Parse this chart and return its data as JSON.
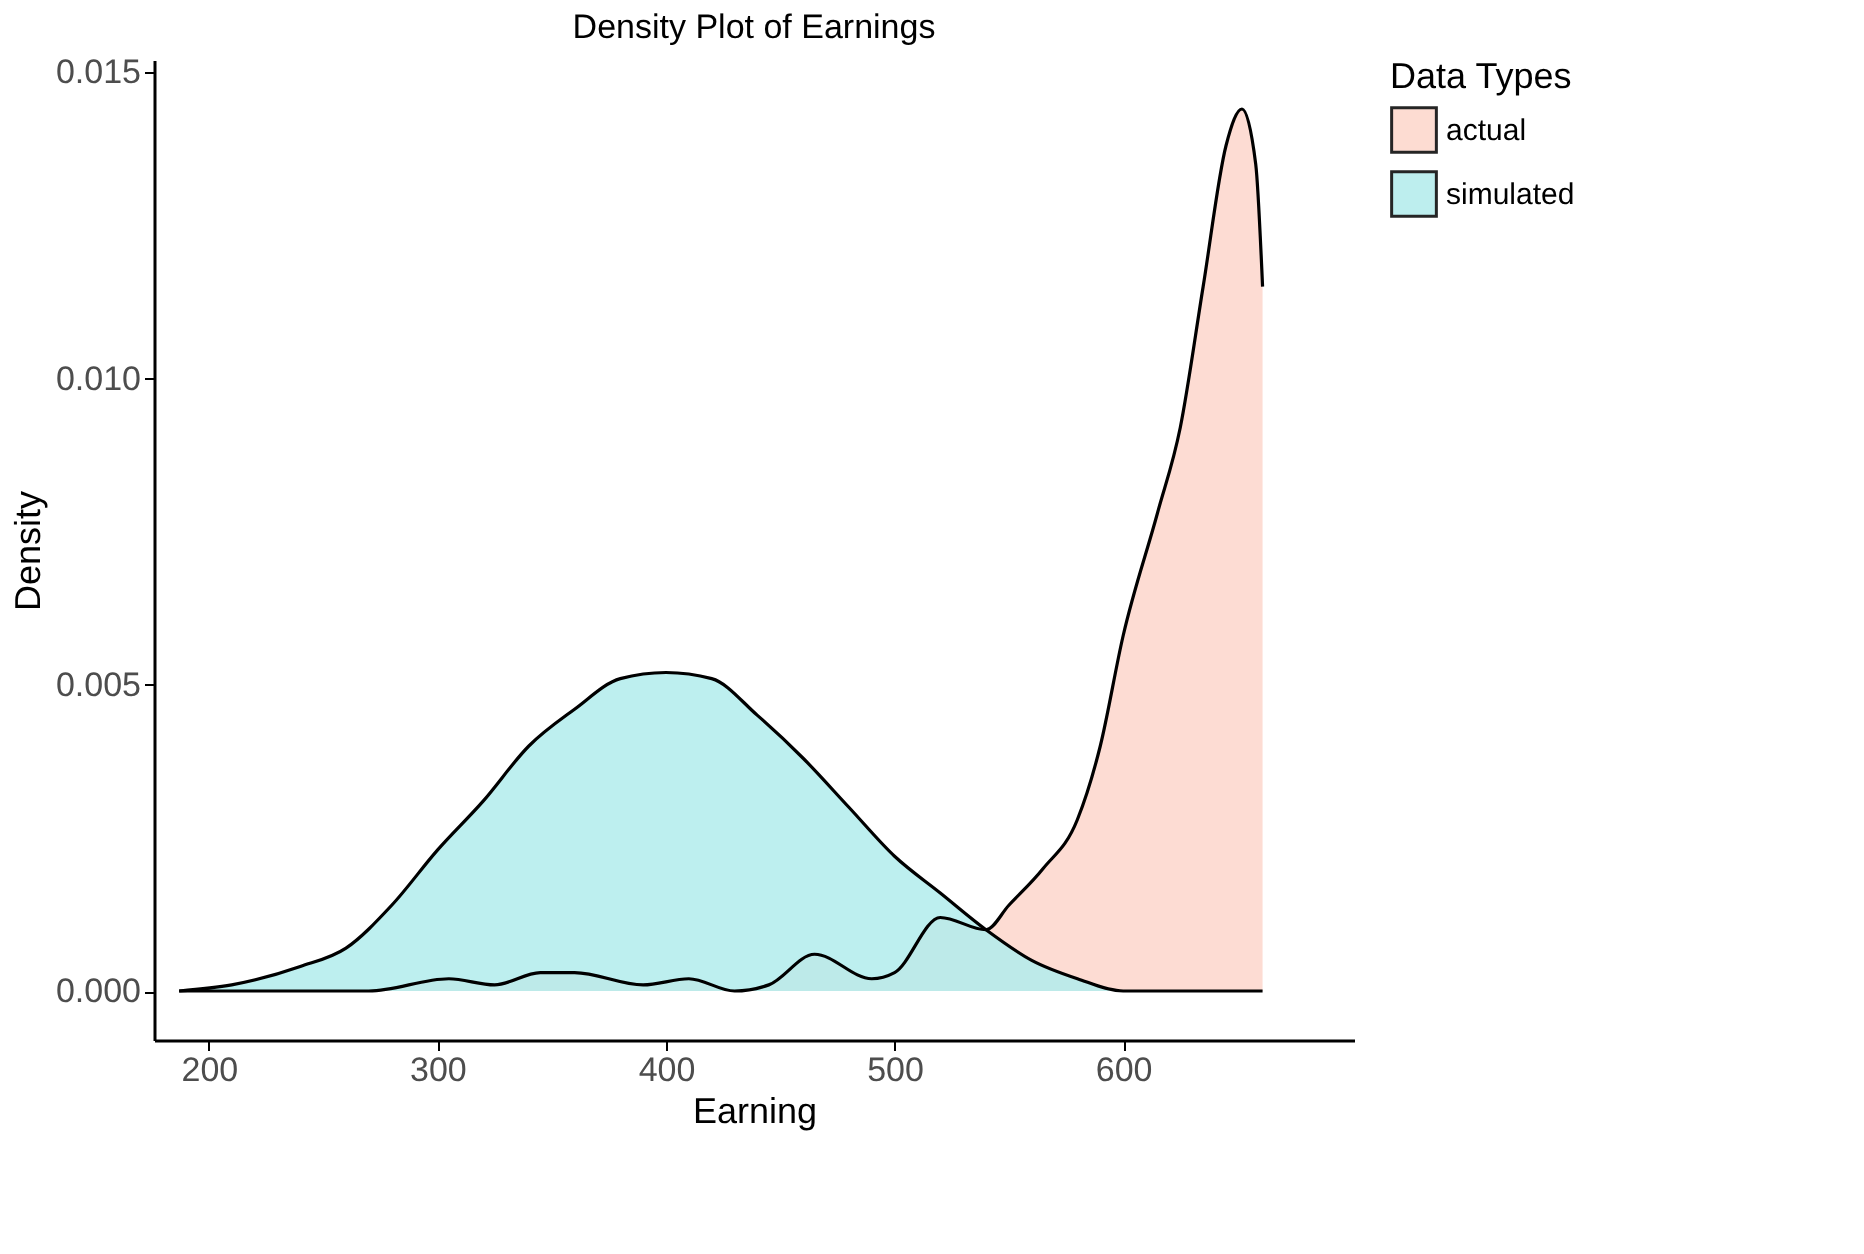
{
  "chart_data": {
    "type": "area",
    "title": "Density Plot of Earnings",
    "xlabel": "Earning",
    "ylabel": "Density",
    "legend_title": "Data Types",
    "series": [
      {
        "name": "actual",
        "color": "#fdd6cb",
        "x": [
          187,
          270,
          305,
          325,
          345,
          360,
          390,
          410,
          430,
          445,
          465,
          490,
          500,
          520,
          540,
          550,
          565,
          580,
          590,
          600,
          615,
          625,
          635,
          645,
          652,
          658,
          661
        ],
        "values": [
          0,
          0,
          0.0002,
          0.0001,
          0.0003,
          0.0003,
          0.0001,
          0.0002,
          0,
          0.0001,
          0.0006,
          0.0002,
          0.0003,
          0.0012,
          0.001,
          0.0014,
          0.002,
          0.0028,
          0.004,
          0.0058,
          0.0078,
          0.0092,
          0.0115,
          0.0138,
          0.0144,
          0.0135,
          0.0115
        ]
      },
      {
        "name": "simulated",
        "color": "#b2ecec",
        "x": [
          187,
          210,
          240,
          260,
          280,
          300,
          320,
          340,
          360,
          380,
          400,
          420,
          440,
          460,
          480,
          500,
          520,
          540,
          560,
          580,
          600,
          630,
          661
        ],
        "values": [
          0,
          0.0001,
          0.0004,
          0.0007,
          0.0014,
          0.0023,
          0.0031,
          0.004,
          0.0046,
          0.0051,
          0.0052,
          0.0051,
          0.0045,
          0.0038,
          0.003,
          0.0022,
          0.0016,
          0.001,
          0.0005,
          0.0002,
          0,
          0,
          0
        ]
      }
    ],
    "xlim": [
      176,
      701
    ],
    "xticks": [
      200,
      300,
      400,
      500,
      600
    ],
    "ylim": [
      -0.0008,
      0.0152
    ],
    "yticks": [
      {
        "value": 0,
        "label": "0.000"
      },
      {
        "value": 0.005,
        "label": "0.005"
      },
      {
        "value": 0.01,
        "label": "0.010"
      },
      {
        "value": 0.015,
        "label": "0.015"
      }
    ],
    "grid": false,
    "legend": "right"
  }
}
